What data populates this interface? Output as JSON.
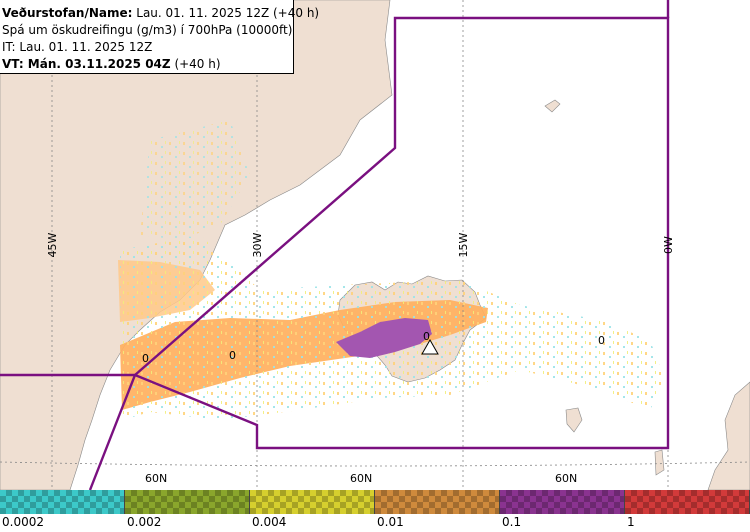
{
  "header": {
    "line1_label": "Veðurstofan/Name:",
    "line1_value": "Lau. 01. 11. 2025 12Z (+40 h)",
    "line2": "Spá um öskudreifingu (g/m3) í 700hPa (10000ft)",
    "line3": "IT: Lau. 01. 11. 2025 12Z",
    "line4_label": "VT: Mán. 03.11.2025 04Z",
    "line4_value": "(+40 h)"
  },
  "map": {
    "lon_labels": [
      "45W",
      "30W",
      "15W",
      "0W"
    ],
    "lat_labels": [
      "60N",
      "60N",
      "60N"
    ],
    "contour_labels": [
      "0",
      "0",
      "0",
      "0"
    ]
  },
  "legend": {
    "ticks": [
      "0.0002",
      "0.002",
      "0.004",
      "0.01",
      "0.1",
      "1"
    ],
    "colors": [
      "#3cc9c9",
      "#8aa62c",
      "#d6cf2e",
      "#cf8a3c",
      "#8a3390",
      "#d23a3a"
    ]
  },
  "colors": {
    "land": "#efdfd2",
    "boundary": "#7a1080",
    "ash_light": "#ffb05e",
    "ash_dense": "#a356b0"
  }
}
